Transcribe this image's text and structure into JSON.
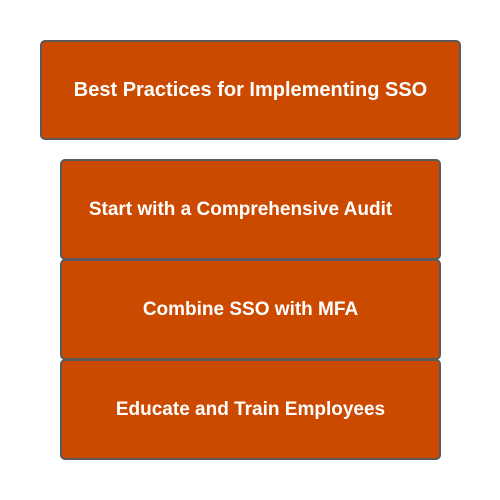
{
  "diagram": {
    "title": "Best Practices for Implementing SSO",
    "items": [
      {
        "label": "Start with a Comprehensive Audit"
      },
      {
        "label": "Combine SSO with MFA"
      },
      {
        "label": "Educate and Train Employees"
      }
    ]
  },
  "colors": {
    "box_fill": "#cc4a00",
    "box_border": "#5a5a5a",
    "text": "#ffffff",
    "background": "#ffffff"
  }
}
